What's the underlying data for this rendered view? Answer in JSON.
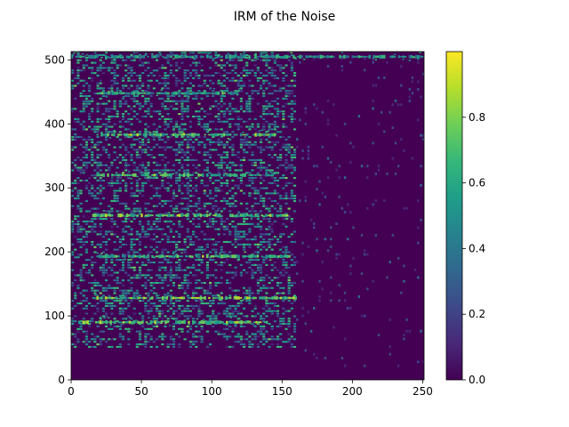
{
  "chart_data": {
    "type": "heatmap",
    "title": "IRM of the Noise",
    "xlabel": "",
    "ylabel": "",
    "xlim": [
      0,
      251
    ],
    "ylim": [
      0,
      513
    ],
    "x_ticks": [
      "0",
      "50",
      "100",
      "150",
      "200",
      "250"
    ],
    "y_ticks": [
      "0",
      "100",
      "200",
      "300",
      "400",
      "500"
    ],
    "colormap": "viridis",
    "colorbar": {
      "range": [
        0.0,
        1.0
      ],
      "ticks": [
        "0.0",
        "0.2",
        "0.4",
        "0.6",
        "0.8"
      ]
    },
    "background_value": 0.0,
    "harmonic_bands": [
      {
        "y": 90,
        "x_start": 5,
        "x_end": 140,
        "value": 0.9
      },
      {
        "y": 128,
        "x_start": 15,
        "x_end": 160,
        "value": 0.95
      },
      {
        "y": 193,
        "x_start": 18,
        "x_end": 155,
        "value": 0.85
      },
      {
        "y": 257,
        "x_start": 15,
        "x_end": 155,
        "value": 0.9
      },
      {
        "y": 320,
        "x_start": 18,
        "x_end": 145,
        "value": 0.85
      },
      {
        "y": 383,
        "x_start": 18,
        "x_end": 145,
        "value": 0.85
      },
      {
        "y": 448,
        "x_start": 20,
        "x_end": 120,
        "value": 0.75
      },
      {
        "y": 505,
        "x_start": 0,
        "x_end": 250,
        "value": 0.7
      }
    ],
    "energy_region": {
      "x_start": 0,
      "x_end": 160,
      "y_start": 50,
      "y_end": 513,
      "mean_value": 0.25
    },
    "sparse_region": {
      "x_start": 160,
      "x_end": 251,
      "mean_value": 0.05
    }
  },
  "colors": {
    "viridis": [
      "#440154",
      "#482878",
      "#3e4989",
      "#31688e",
      "#26828e",
      "#1f9e89",
      "#35b779",
      "#6ece58",
      "#b5de2b",
      "#fde725"
    ]
  }
}
